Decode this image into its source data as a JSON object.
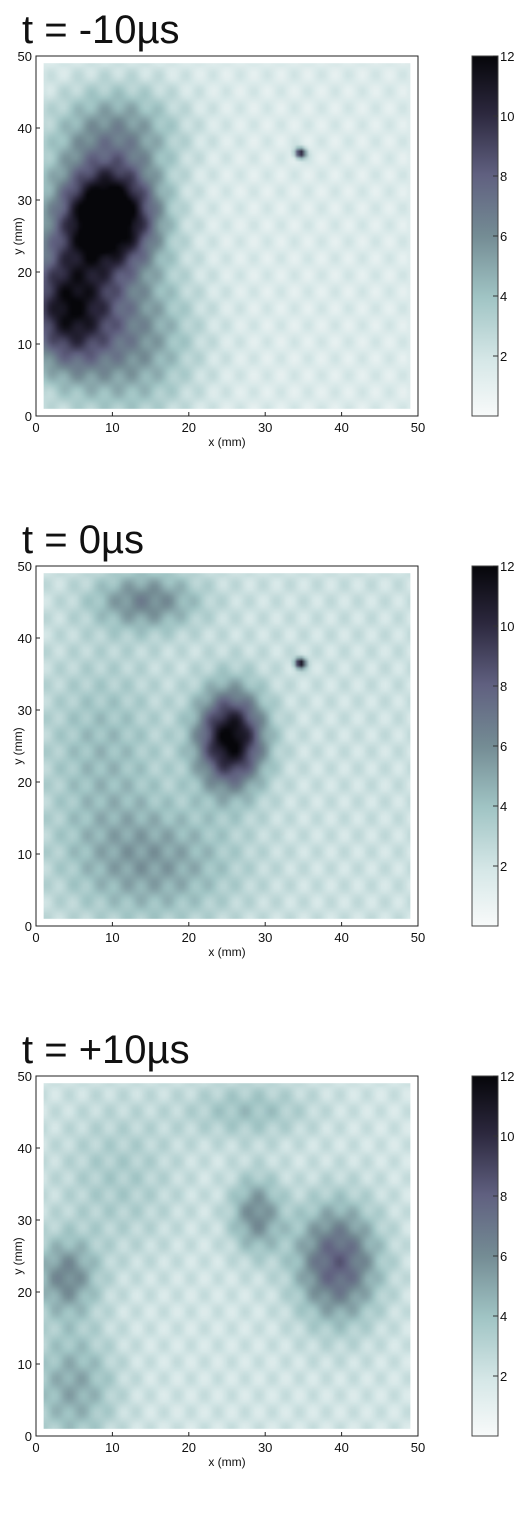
{
  "chart_data": [
    {
      "type": "heatmap",
      "title": "t = -10µs",
      "xlabel": "x (mm)",
      "ylabel": "y (mm)",
      "xlim": [
        0,
        50
      ],
      "ylim": [
        0,
        50
      ],
      "xticks": [
        0,
        10,
        20,
        30,
        40,
        50
      ],
      "yticks": [
        0,
        10,
        20,
        30,
        40,
        50
      ],
      "colorbar": {
        "range": [
          0,
          12
        ],
        "ticks": [
          2,
          4,
          6,
          8,
          10,
          12
        ]
      },
      "grid": false,
      "baseline": 1.5,
      "blobs": [
        {
          "x": 9,
          "y": 28,
          "sx": 4.5,
          "sy": 5,
          "a": 11
        },
        {
          "x": 3,
          "y": 14,
          "sx": 4,
          "sy": 6,
          "a": 7
        },
        {
          "x": 10,
          "y": 40,
          "sx": 6,
          "sy": 5,
          "a": 4
        },
        {
          "x": 12,
          "y": 10,
          "sx": 6,
          "sy": 8,
          "a": 4
        },
        {
          "x": 5,
          "y": 22,
          "sx": 6,
          "sy": 10,
          "a": 3
        },
        {
          "x": 35,
          "y": 37,
          "sx": 0.5,
          "sy": 0.5,
          "a": 10
        }
      ]
    },
    {
      "type": "heatmap",
      "title": "t = 0µs",
      "xlabel": "x (mm)",
      "ylabel": "y (mm)",
      "xlim": [
        0,
        50
      ],
      "ylim": [
        0,
        50
      ],
      "xticks": [
        0,
        10,
        20,
        30,
        40,
        50
      ],
      "yticks": [
        0,
        10,
        20,
        30,
        40,
        50
      ],
      "colorbar": {
        "range": [
          0,
          12
        ],
        "ticks": [
          2,
          4,
          6,
          8,
          10,
          12
        ]
      },
      "grid": false,
      "baseline": 2.2,
      "blobs": [
        {
          "x": 25.5,
          "y": 26,
          "sx": 3.2,
          "sy": 5,
          "a": 10
        },
        {
          "x": 14,
          "y": 46,
          "sx": 5,
          "sy": 3,
          "a": 4
        },
        {
          "x": 15,
          "y": 8,
          "sx": 8,
          "sy": 6,
          "a": 3
        },
        {
          "x": 8,
          "y": 24,
          "sx": 6,
          "sy": 10,
          "a": 2
        },
        {
          "x": 35,
          "y": 37,
          "sx": 0.5,
          "sy": 0.5,
          "a": 10
        }
      ]
    },
    {
      "type": "heatmap",
      "title": "t = +10µs",
      "xlabel": "x (mm)",
      "ylabel": "y (mm)",
      "xlim": [
        0,
        50
      ],
      "ylim": [
        0,
        50
      ],
      "xticks": [
        0,
        10,
        20,
        30,
        40,
        50
      ],
      "yticks": [
        0,
        10,
        20,
        30,
        40,
        50
      ],
      "colorbar": {
        "range": [
          0,
          12
        ],
        "ticks": [
          2,
          4,
          6,
          8,
          10,
          12
        ]
      },
      "grid": false,
      "baseline": 2.0,
      "blobs": [
        {
          "x": 40,
          "y": 24,
          "sx": 4,
          "sy": 6,
          "a": 6
        },
        {
          "x": 29,
          "y": 31,
          "sx": 2.5,
          "sy": 4,
          "a": 4
        },
        {
          "x": 3,
          "y": 22,
          "sx": 3,
          "sy": 4,
          "a": 4
        },
        {
          "x": 4,
          "y": 6,
          "sx": 4,
          "sy": 6,
          "a": 3
        },
        {
          "x": 28,
          "y": 46,
          "sx": 6,
          "sy": 3,
          "a": 2
        },
        {
          "x": 10,
          "y": 36,
          "sx": 6,
          "sy": 8,
          "a": 1.5
        }
      ]
    }
  ]
}
